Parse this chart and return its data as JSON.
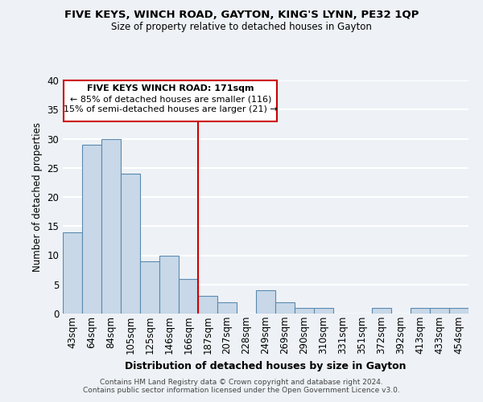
{
  "title": "FIVE KEYS, WINCH ROAD, GAYTON, KING'S LYNN, PE32 1QP",
  "subtitle": "Size of property relative to detached houses in Gayton",
  "xlabel": "Distribution of detached houses by size in Gayton",
  "ylabel": "Number of detached properties",
  "bins": [
    "43sqm",
    "64sqm",
    "84sqm",
    "105sqm",
    "125sqm",
    "146sqm",
    "166sqm",
    "187sqm",
    "207sqm",
    "228sqm",
    "249sqm",
    "269sqm",
    "290sqm",
    "310sqm",
    "331sqm",
    "351sqm",
    "372sqm",
    "392sqm",
    "413sqm",
    "433sqm",
    "454sqm"
  ],
  "counts": [
    14,
    29,
    30,
    24,
    9,
    10,
    6,
    3,
    2,
    0,
    4,
    2,
    1,
    1,
    0,
    0,
    1,
    0,
    1,
    1,
    1
  ],
  "bar_color": "#c8d8e8",
  "bar_edge_color": "#5a8ab0",
  "vline_x_index": 6,
  "vline_color": "#cc0000",
  "annotation_title": "FIVE KEYS WINCH ROAD: 171sqm",
  "annotation_line1": "← 85% of detached houses are smaller (116)",
  "annotation_line2": "15% of semi-detached houses are larger (21) →",
  "annotation_box_color": "#cc0000",
  "ylim": [
    0,
    40
  ],
  "yticks": [
    0,
    5,
    10,
    15,
    20,
    25,
    30,
    35,
    40
  ],
  "footer_line1": "Contains HM Land Registry data © Crown copyright and database right 2024.",
  "footer_line2": "Contains public sector information licensed under the Open Government Licence v3.0.",
  "background_color": "#eef2f6",
  "grid_color": "#ffffff"
}
